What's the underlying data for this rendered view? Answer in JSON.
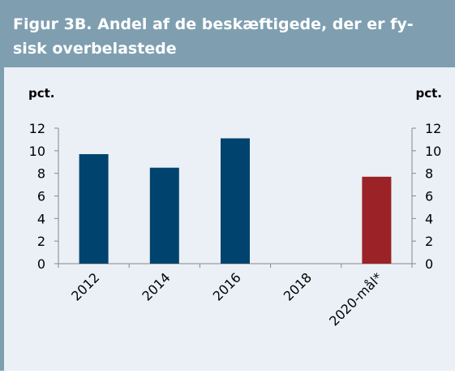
{
  "chart_data": {
    "type": "bar",
    "title": [
      "Figur 3B. Andel af de beskæftigede, der er fy-",
      "sisk overbelastede"
    ],
    "ylabel": "pct.",
    "y2label": "pct.",
    "categories": [
      "2012",
      "2014",
      "2016",
      "2018",
      "2020-mål*"
    ],
    "values": [
      9.7,
      8.5,
      11.1,
      null,
      7.7
    ],
    "colors": [
      "#00436e",
      "#00436e",
      "#00436e",
      "#00436e",
      "#9b2226"
    ],
    "ylim": [
      0,
      12
    ],
    "yticks": [
      0,
      2,
      4,
      6,
      8,
      10,
      12
    ],
    "y2lim": [
      0,
      12
    ],
    "y2ticks": [
      0,
      2,
      4,
      6,
      8,
      10,
      12
    ]
  }
}
